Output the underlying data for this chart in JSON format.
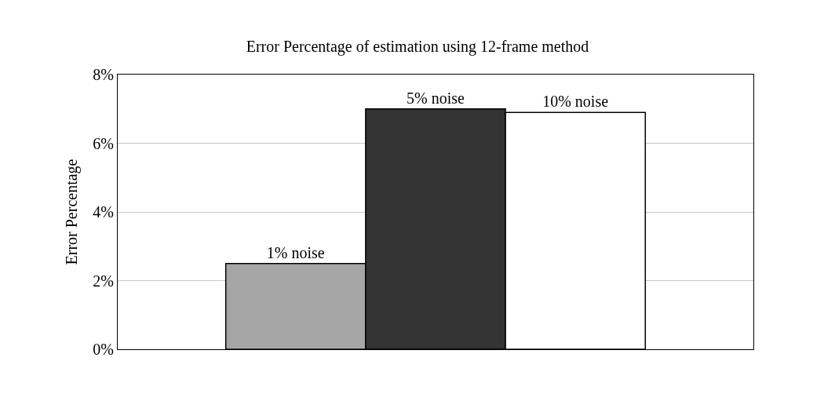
{
  "chart_data": {
    "type": "bar",
    "title": "Error Percentage of estimation using 12-frame method",
    "ylabel": "Error Percentage",
    "categories": [
      null
    ],
    "series": [
      {
        "name": "1% noise",
        "color": "#a6a6a6",
        "values": [
          2.5
        ]
      },
      {
        "name": "5% noise",
        "color": "#333333",
        "values": [
          7.0
        ]
      },
      {
        "name": "10% noise",
        "color": "#ffffff",
        "values": [
          6.9
        ]
      }
    ],
    "ylim": [
      0,
      8
    ],
    "yticks": [
      {
        "value": 0,
        "label": "0%"
      },
      {
        "value": 2,
        "label": "2%"
      },
      {
        "value": 4,
        "label": "4%"
      },
      {
        "value": 6,
        "label": "6%"
      },
      {
        "value": 8,
        "label": "8%"
      }
    ],
    "grid": "y",
    "legend": false
  }
}
